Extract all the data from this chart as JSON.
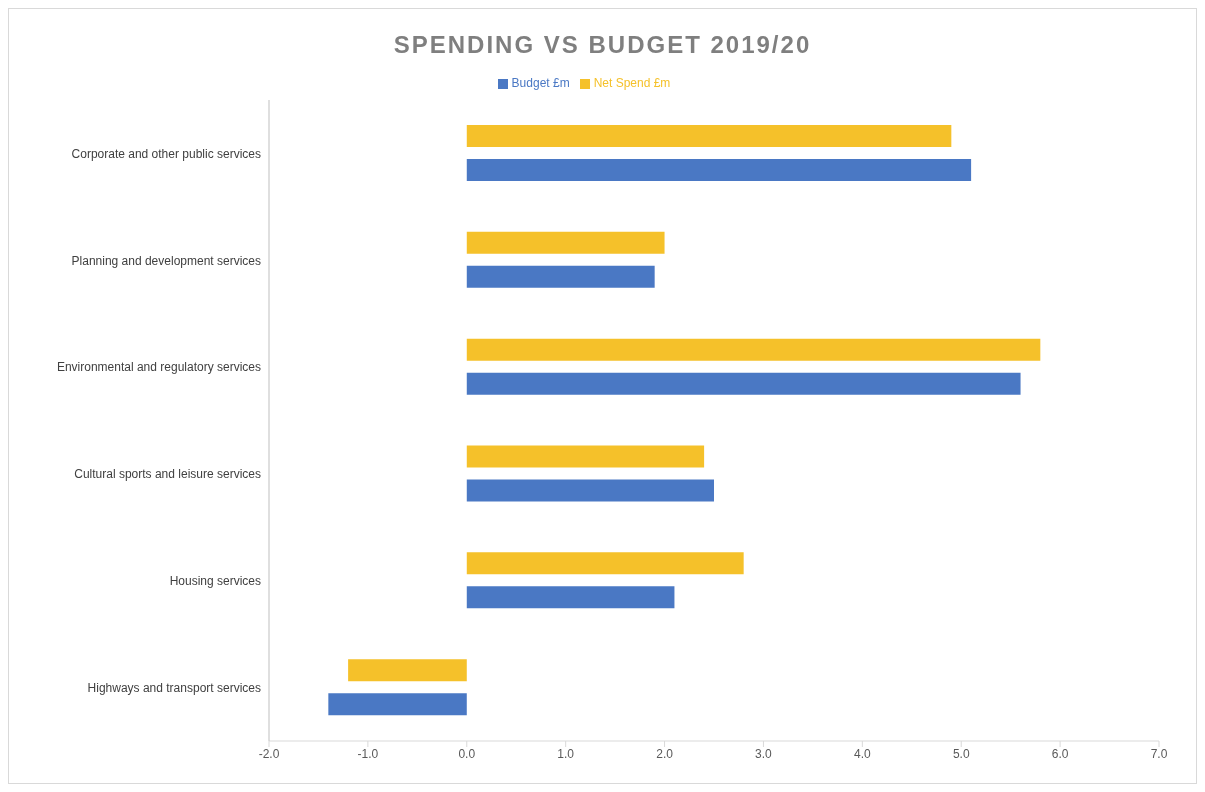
{
  "chart_data": {
    "type": "bar",
    "orientation": "horizontal",
    "title": "SPENDING VS BUDGET 2019/20",
    "categories": [
      "Corporate and other public services",
      "Planning and development services",
      "Environmental and regulatory services",
      "Cultural sports and leisure services",
      "Housing services",
      "Highways and transport services"
    ],
    "series": [
      {
        "name": "Net Spend £m",
        "color": "#f5c12a",
        "values": [
          4.9,
          2.0,
          5.8,
          2.4,
          2.8,
          -1.2
        ]
      },
      {
        "name": "Budget £m",
        "color": "#4a78c4",
        "values": [
          5.1,
          1.9,
          5.6,
          2.5,
          2.1,
          -1.4
        ]
      }
    ],
    "xlim": [
      -2,
      7
    ],
    "xticks": [
      {
        "value": -2,
        "label": "-2.0"
      },
      {
        "value": -1,
        "label": "-1.0"
      },
      {
        "value": 0,
        "label": "0.0"
      },
      {
        "value": 1,
        "label": "1.0"
      },
      {
        "value": 2,
        "label": "2.0"
      },
      {
        "value": 3,
        "label": "3.0"
      },
      {
        "value": 4,
        "label": "4.0"
      },
      {
        "value": 5,
        "label": "5.0"
      },
      {
        "value": 6,
        "label": "6.0"
      },
      {
        "value": 7,
        "label": "7.0"
      }
    ],
    "grid": false,
    "legend": "top"
  }
}
